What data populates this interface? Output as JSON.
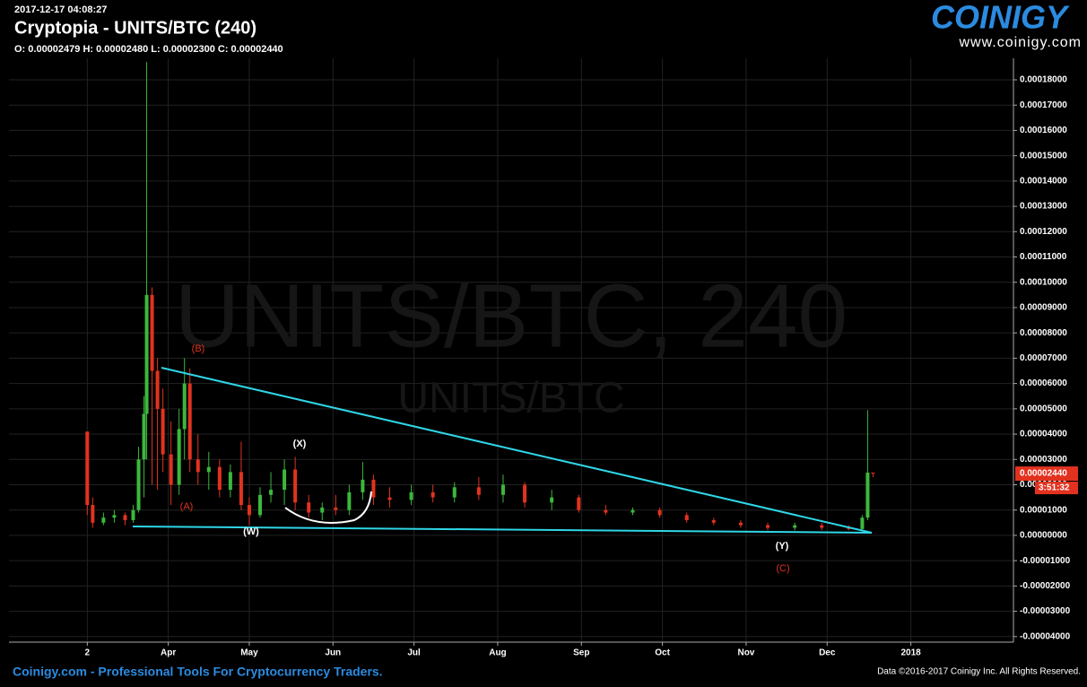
{
  "header": {
    "timestamp": "2017-12-17 04:08:27",
    "title": "Cryptopia - UNITS/BTC (240)",
    "ohlc": "O: 0.00002479 H: 0.00002480 L: 0.00002300 C: 0.00002440"
  },
  "logo": {
    "name": "COINIGY",
    "url": "www.coinigy.com"
  },
  "watermark": {
    "main": "UNITS/BTC, 240",
    "sub": "UNITS/BTC"
  },
  "footer": {
    "left": "Coinigy.com - Professional Tools For Cryptocurrency Traders.",
    "right": "Data ©2016-2017 Coinigy Inc. All Rights Reserved."
  },
  "annotations": [
    "(B)",
    "(A)",
    "(W)",
    "(X)",
    "(Y)",
    "(C)"
  ],
  "chart_data": {
    "type": "candlestick",
    "x": [
      60,
      62,
      66,
      70,
      74,
      77,
      79,
      81,
      82,
      84,
      86,
      88,
      91,
      94,
      96,
      98,
      101,
      105,
      109,
      113,
      117,
      120,
      124,
      128,
      133,
      137,
      142,
      147,
      152,
      157,
      162,
      166,
      172,
      180,
      188,
      196,
      205,
      214,
      222,
      232,
      242,
      252,
      262,
      272,
      282,
      292,
      302,
      312,
      322,
      332,
      342,
      347,
      349,
      351
    ],
    "open": [
      4.1e-05,
      1.2e-05,
      5e-06,
      7e-06,
      8e-06,
      6e-06,
      1e-05,
      3e-05,
      4.8e-05,
      9.5e-05,
      6.5e-05,
      5e-05,
      3.2e-05,
      2e-05,
      4.2e-05,
      6e-05,
      3e-05,
      2.5e-05,
      2.7e-05,
      1.8e-05,
      2.5e-05,
      1.2e-05,
      8e-06,
      1.6e-05,
      1.8e-05,
      2.6e-05,
      1.3e-05,
      9e-06,
      1.1e-05,
      1e-05,
      1.7e-05,
      2.2e-05,
      1.5e-05,
      1.4e-05,
      1.7e-05,
      1.5e-05,
      1.9e-05,
      1.6e-05,
      2e-05,
      1.3e-05,
      1.5e-05,
      1e-05,
      9e-06,
      1e-05,
      8e-06,
      6e-06,
      5e-06,
      4e-06,
      3e-06,
      4e-06,
      3e-06,
      2.5e-06,
      7e-06,
      2.479e-05
    ],
    "high": [
      4.1e-05,
      1.5e-05,
      9e-06,
      1e-05,
      9e-06,
      1.2e-05,
      3.5e-05,
      5.5e-05,
      0.000187,
      9.8e-05,
      7e-05,
      5.8e-05,
      4.5e-05,
      5e-05,
      7e-05,
      6.6e-05,
      4e-05,
      3.3e-05,
      3e-05,
      2.8e-05,
      3.7e-05,
      1.5e-05,
      1.9e-05,
      2.5e-05,
      3e-05,
      3.1e-05,
      1.6e-05,
      1.3e-05,
      1.6e-05,
      2e-05,
      2.9e-05,
      2.4e-05,
      1.9e-05,
      2e-05,
      2e-05,
      2.1e-05,
      2.3e-05,
      2.4e-05,
      2.1e-05,
      1.8e-05,
      1.6e-05,
      1.2e-05,
      1.1e-05,
      1.1e-05,
      9e-06,
      7e-06,
      6e-06,
      5e-06,
      5e-06,
      5e-06,
      4e-06,
      8e-06,
      4.95e-05,
      2.48e-05
    ],
    "low": [
      8e-06,
      3e-06,
      4e-06,
      5e-06,
      4e-06,
      5e-06,
      9e-06,
      1.5e-05,
      3e-05,
      2e-05,
      1.8e-05,
      2.5e-05,
      1.2e-05,
      1.6e-05,
      3e-05,
      2.5e-05,
      2e-05,
      1.8e-05,
      1.5e-05,
      1.5e-05,
      1e-05,
      4e-06,
      7e-06,
      1.3e-05,
      1.2e-05,
      1e-05,
      7e-06,
      6e-06,
      8e-06,
      8e-06,
      1.4e-05,
      1.2e-05,
      1.1e-05,
      1.2e-05,
      1.3e-05,
      1.3e-05,
      1.4e-05,
      1.3e-05,
      1.1e-05,
      1e-05,
      9e-06,
      8e-06,
      8e-06,
      7e-06,
      5e-06,
      4e-06,
      3e-06,
      2e-06,
      2e-06,
      2e-06,
      2e-06,
      2e-06,
      6e-06,
      2.3e-05
    ],
    "close": [
      1.2e-05,
      5e-06,
      7e-06,
      8e-06,
      6e-06,
      1e-05,
      3e-05,
      4.8e-05,
      9.5e-05,
      6.5e-05,
      5e-05,
      3.2e-05,
      2e-05,
      4.2e-05,
      6e-05,
      3e-05,
      2.5e-05,
      2.7e-05,
      1.8e-05,
      2.5e-05,
      1.2e-05,
      8e-06,
      1.6e-05,
      1.8e-05,
      2.6e-05,
      1.3e-05,
      9e-06,
      1.1e-05,
      1e-05,
      1.7e-05,
      2.2e-05,
      1.5e-05,
      1.4e-05,
      1.7e-05,
      1.5e-05,
      1.9e-05,
      1.6e-05,
      2e-05,
      1.3e-05,
      1.5e-05,
      1e-05,
      9e-06,
      1e-05,
      8e-06,
      6e-06,
      5e-06,
      4e-06,
      3e-06,
      4e-06,
      3e-06,
      2.5e-06,
      7e-06,
      2.479e-05,
      2.44e-05
    ],
    "up_color": "#3cb83c",
    "down_color": "#e2321f",
    "xlim": [
      31,
      403
    ],
    "xticks": [
      {
        "value": 60,
        "label": "2"
      },
      {
        "value": 90,
        "label": "Apr"
      },
      {
        "value": 120,
        "label": "May"
      },
      {
        "value": 151,
        "label": "Jun"
      },
      {
        "value": 181,
        "label": "Jul"
      },
      {
        "value": 212,
        "label": "Aug"
      },
      {
        "value": 243,
        "label": "Sep"
      },
      {
        "value": 273,
        "label": "Oct"
      },
      {
        "value": 304,
        "label": "Nov"
      },
      {
        "value": 334,
        "label": "Dec"
      },
      {
        "value": 365,
        "label": "2018"
      }
    ],
    "ylim": [
      -4.22e-05,
      0.0001885
    ],
    "yticks": [
      {
        "value": 0.00018,
        "label": "0.00018000"
      },
      {
        "value": 0.00017,
        "label": "0.00017000"
      },
      {
        "value": 0.00016,
        "label": "0.00016000"
      },
      {
        "value": 0.00015,
        "label": "0.00015000"
      },
      {
        "value": 0.00014,
        "label": "0.00014000"
      },
      {
        "value": 0.00013,
        "label": "0.00013000"
      },
      {
        "value": 0.00012,
        "label": "0.00012000"
      },
      {
        "value": 0.00011,
        "label": "0.00011000"
      },
      {
        "value": 0.0001,
        "label": "0.00010000"
      },
      {
        "value": 9e-05,
        "label": "0.00009000"
      },
      {
        "value": 8e-05,
        "label": "0.00008000"
      },
      {
        "value": 7e-05,
        "label": "0.00007000"
      },
      {
        "value": 6e-05,
        "label": "0.00006000"
      },
      {
        "value": 5e-05,
        "label": "0.00005000"
      },
      {
        "value": 4e-05,
        "label": "0.00004000"
      },
      {
        "value": 3e-05,
        "label": "0.00003000"
      },
      {
        "value": 2e-05,
        "label": "0.00002000"
      },
      {
        "value": 1e-05,
        "label": "0.00001000"
      },
      {
        "value": 0,
        "label": "0.00000000"
      },
      {
        "value": -1e-05,
        "label": "-0.00001000"
      },
      {
        "value": -2e-05,
        "label": "-0.00002000"
      },
      {
        "value": -3e-05,
        "label": "-0.00003000"
      },
      {
        "value": -4e-05,
        "label": "-0.00004000"
      }
    ],
    "grid": true,
    "last_price": {
      "value": 2.44e-05,
      "label": "0.00002440"
    },
    "countdown": "3:51:32"
  }
}
